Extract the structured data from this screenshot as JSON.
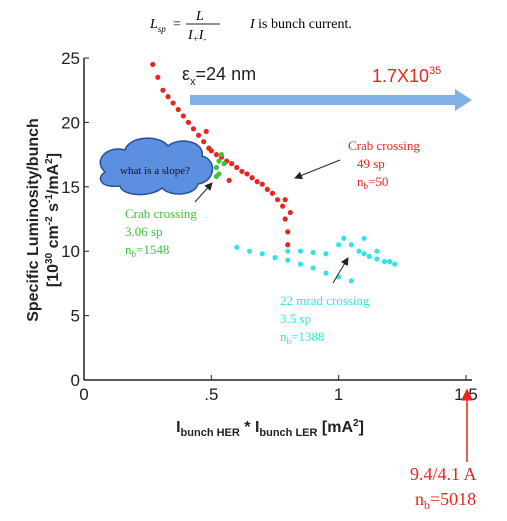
{
  "chart_data": {
    "type": "scatter",
    "formula": {
      "lhs": "L",
      "lhs_sub": "sp",
      "numerator": "L",
      "den_1": "I",
      "den_1_sub": "+",
      "den_2": "I",
      "den_2_sub": "-",
      "note_var": "I",
      "note": "is bunch current."
    },
    "y_label": {
      "line1": "Specific Luminosity/bunch",
      "a": "[10",
      "a_sup": "30",
      "b": "cm",
      "b_sup": "-2",
      "c": "s",
      "c_sup": "-1",
      "d": "/mA",
      "d_sup": "2",
      "e": "]"
    },
    "x_label": {
      "a": "I",
      "a_sub": "bunch HER",
      "b": " * I",
      "b_sub": "bunch LER",
      "c": " [mA",
      "c_sup": "2",
      "d": "]"
    },
    "emittance": {
      "sym": "ε",
      "sub": "x",
      "text": "=24 nm"
    },
    "target": {
      "text": "1.7X10",
      "sup": "35"
    },
    "cloud": "what is a slope?",
    "crab49": {
      "l1": "Crab crossing",
      "l2": "49 sp",
      "n": "n",
      "n_sub": "b",
      "n_val": "=50"
    },
    "crab306": {
      "l1": "Crab crossing",
      "l2": "3.06 sp",
      "n": "n",
      "n_sub": "b",
      "n_val": "=1548"
    },
    "mrad22": {
      "l1": "22 mrad crossing",
      "l2": "3.5 sp",
      "n": "n",
      "n_sub": "b",
      "n_val": "=1388"
    },
    "design": {
      "l1": "9.4/4.1 A",
      "n": "n",
      "n_sub": "b",
      "n_val": "=5018"
    },
    "xlim": [
      0,
      1.5
    ],
    "ylim": [
      0,
      25
    ],
    "xticks": [
      0,
      {
        "value": 0.5,
        "label": ".5"
      },
      1,
      1.5
    ],
    "yticks": [
      0,
      5,
      10,
      15,
      20,
      25
    ],
    "series": [
      {
        "color": "#e8261e",
        "x": [
          0.27,
          0.29,
          0.31,
          0.33,
          0.35,
          0.37,
          0.39,
          0.41,
          0.43,
          0.45,
          0.47,
          0.49,
          0.5,
          0.52,
          0.54,
          0.56,
          0.58,
          0.6,
          0.62,
          0.64,
          0.66,
          0.68,
          0.7,
          0.72,
          0.74,
          0.76,
          0.78,
          0.79,
          0.8,
          0.79,
          0.81,
          0.8,
          0.57,
          0.48
        ],
        "values": [
          24.5,
          23.5,
          22.5,
          22,
          21.5,
          21,
          20.5,
          20,
          19.5,
          19,
          18.5,
          18,
          17.8,
          17.5,
          17.3,
          17,
          16.8,
          16.5,
          16.2,
          16,
          15.7,
          15.4,
          15.2,
          14.8,
          14.5,
          14,
          13.5,
          12.5,
          11.5,
          14,
          13,
          10.5,
          15.5,
          19.3
        ]
      },
      {
        "color": "#3ec43a",
        "x": [
          0.52,
          0.53,
          0.53,
          0.54,
          0.55,
          0.52
        ],
        "values": [
          16.5,
          17,
          16,
          17.5,
          16.8,
          15.8
        ]
      },
      {
        "color": "#2ee6e6",
        "x": [
          0.6,
          0.65,
          0.7,
          0.75,
          0.8,
          0.85,
          0.9,
          0.95,
          1.0,
          1.05,
          0.8,
          0.85,
          0.9,
          0.95,
          1.0,
          1.02,
          1.05,
          1.08,
          1.1,
          1.12,
          1.15,
          1.18,
          1.2,
          1.22,
          1.1,
          1.15
        ],
        "values": [
          10.3,
          10,
          9.8,
          9.5,
          9.3,
          9,
          8.7,
          8.3,
          8,
          7.7,
          10,
          10,
          9.9,
          9.8,
          10.5,
          11,
          10.5,
          10,
          9.8,
          9.6,
          9.4,
          9.2,
          9.2,
          9,
          11,
          10
        ]
      }
    ]
  }
}
